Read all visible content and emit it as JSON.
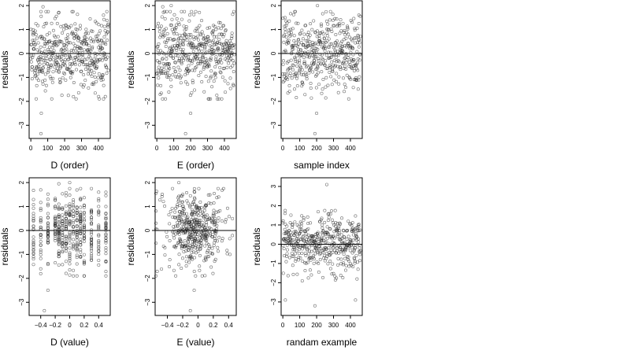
{
  "chart_data": [
    {
      "type": "scatter",
      "xlabel": "D (order)",
      "ylabel": "residuals",
      "xlim": [
        -10,
        470
      ],
      "ylim": [
        -3.55,
        2.2
      ],
      "xticks": [
        0,
        100,
        200,
        300,
        400
      ],
      "yticks": [
        -3,
        -2,
        -1,
        0,
        1,
        2
      ],
      "hline": 0,
      "grid": false,
      "x_kind": "index",
      "n_points": 460,
      "seed": 11,
      "outliers": [
        [
          62,
          -2.5
        ],
        [
          60,
          -3.35
        ],
        [
          72,
          1.95
        ],
        [
          430,
          1.6
        ]
      ]
    },
    {
      "type": "scatter",
      "xlabel": "E (order)",
      "ylabel": "residuals",
      "xlim": [
        -10,
        470
      ],
      "ylim": [
        -3.55,
        2.2
      ],
      "xticks": [
        0,
        100,
        200,
        300,
        400
      ],
      "yticks": [
        -3,
        -2,
        -1,
        0,
        1,
        2
      ],
      "hline": 0,
      "grid": false,
      "x_kind": "index",
      "n_points": 460,
      "seed": 23,
      "outliers": [
        [
          200,
          -2.5
        ],
        [
          170,
          -3.35
        ],
        [
          35,
          1.95
        ],
        [
          85,
          2.0
        ]
      ]
    },
    {
      "type": "scatter",
      "xlabel": "sample index",
      "ylabel": "residuals",
      "xlim": [
        -10,
        470
      ],
      "ylim": [
        -3.55,
        2.2
      ],
      "xticks": [
        0,
        100,
        200,
        300,
        400
      ],
      "yticks": [
        -3,
        -2,
        -1,
        0,
        1,
        2
      ],
      "hline": 0,
      "grid": false,
      "x_kind": "index",
      "n_points": 460,
      "seed": 37,
      "outliers": [
        [
          200,
          -2.5
        ],
        [
          190,
          -3.35
        ],
        [
          205,
          2.0
        ],
        [
          450,
          1.6
        ]
      ]
    },
    {
      "type": "scatter",
      "xlabel": "D (value)",
      "ylabel": "residuals",
      "xlim": [
        -0.56,
        0.56
      ],
      "ylim": [
        -3.55,
        2.2
      ],
      "xticks": [
        -0.4,
        -0.2,
        0.0,
        0.2,
        0.4
      ],
      "yticks": [
        -3,
        -2,
        -1,
        0,
        1,
        2
      ],
      "hline": 0,
      "grid": false,
      "x_kind": "columns",
      "x_columns": [
        -0.5,
        -0.4,
        -0.3,
        -0.2,
        -0.15,
        -0.1,
        -0.05,
        0.0,
        0.05,
        0.1,
        0.15,
        0.2,
        0.3,
        0.4,
        0.5
      ],
      "n_points": 460,
      "seed": 53,
      "outliers": [
        [
          -0.3,
          -2.5
        ],
        [
          -0.35,
          -3.35
        ],
        [
          -0.15,
          1.95
        ],
        [
          0.0,
          2.0
        ]
      ]
    },
    {
      "type": "scatter",
      "xlabel": "E (value)",
      "ylabel": "residuals",
      "xlim": [
        -0.56,
        0.5
      ],
      "ylim": [
        -3.55,
        2.2
      ],
      "xticks": [
        -0.4,
        -0.2,
        0.0,
        0.2,
        0.4
      ],
      "yticks": [
        -3,
        -2,
        -1,
        0,
        1,
        2
      ],
      "hline": 0,
      "grid": false,
      "x_kind": "spread",
      "n_points": 460,
      "seed": 71,
      "outliers": [
        [
          -0.05,
          -2.5
        ],
        [
          -0.1,
          -3.35
        ],
        [
          -0.25,
          2.0
        ],
        [
          -0.55,
          1.55
        ]
      ]
    },
    {
      "type": "scatter",
      "xlabel": "randam example",
      "ylabel": "residuals",
      "xlim": [
        -10,
        470
      ],
      "ylim": [
        -3.7,
        3.45
      ],
      "xticks": [
        0,
        100,
        200,
        300,
        400
      ],
      "yticks": [
        -3,
        -2,
        -1,
        0,
        1,
        2,
        3
      ],
      "hline": 0,
      "grid": false,
      "x_kind": "index",
      "n_points": 460,
      "seed": 97,
      "outliers": [
        [
          260,
          3.1
        ],
        [
          190,
          -3.2
        ],
        [
          15,
          -2.9
        ],
        [
          430,
          -2.9
        ]
      ]
    }
  ]
}
